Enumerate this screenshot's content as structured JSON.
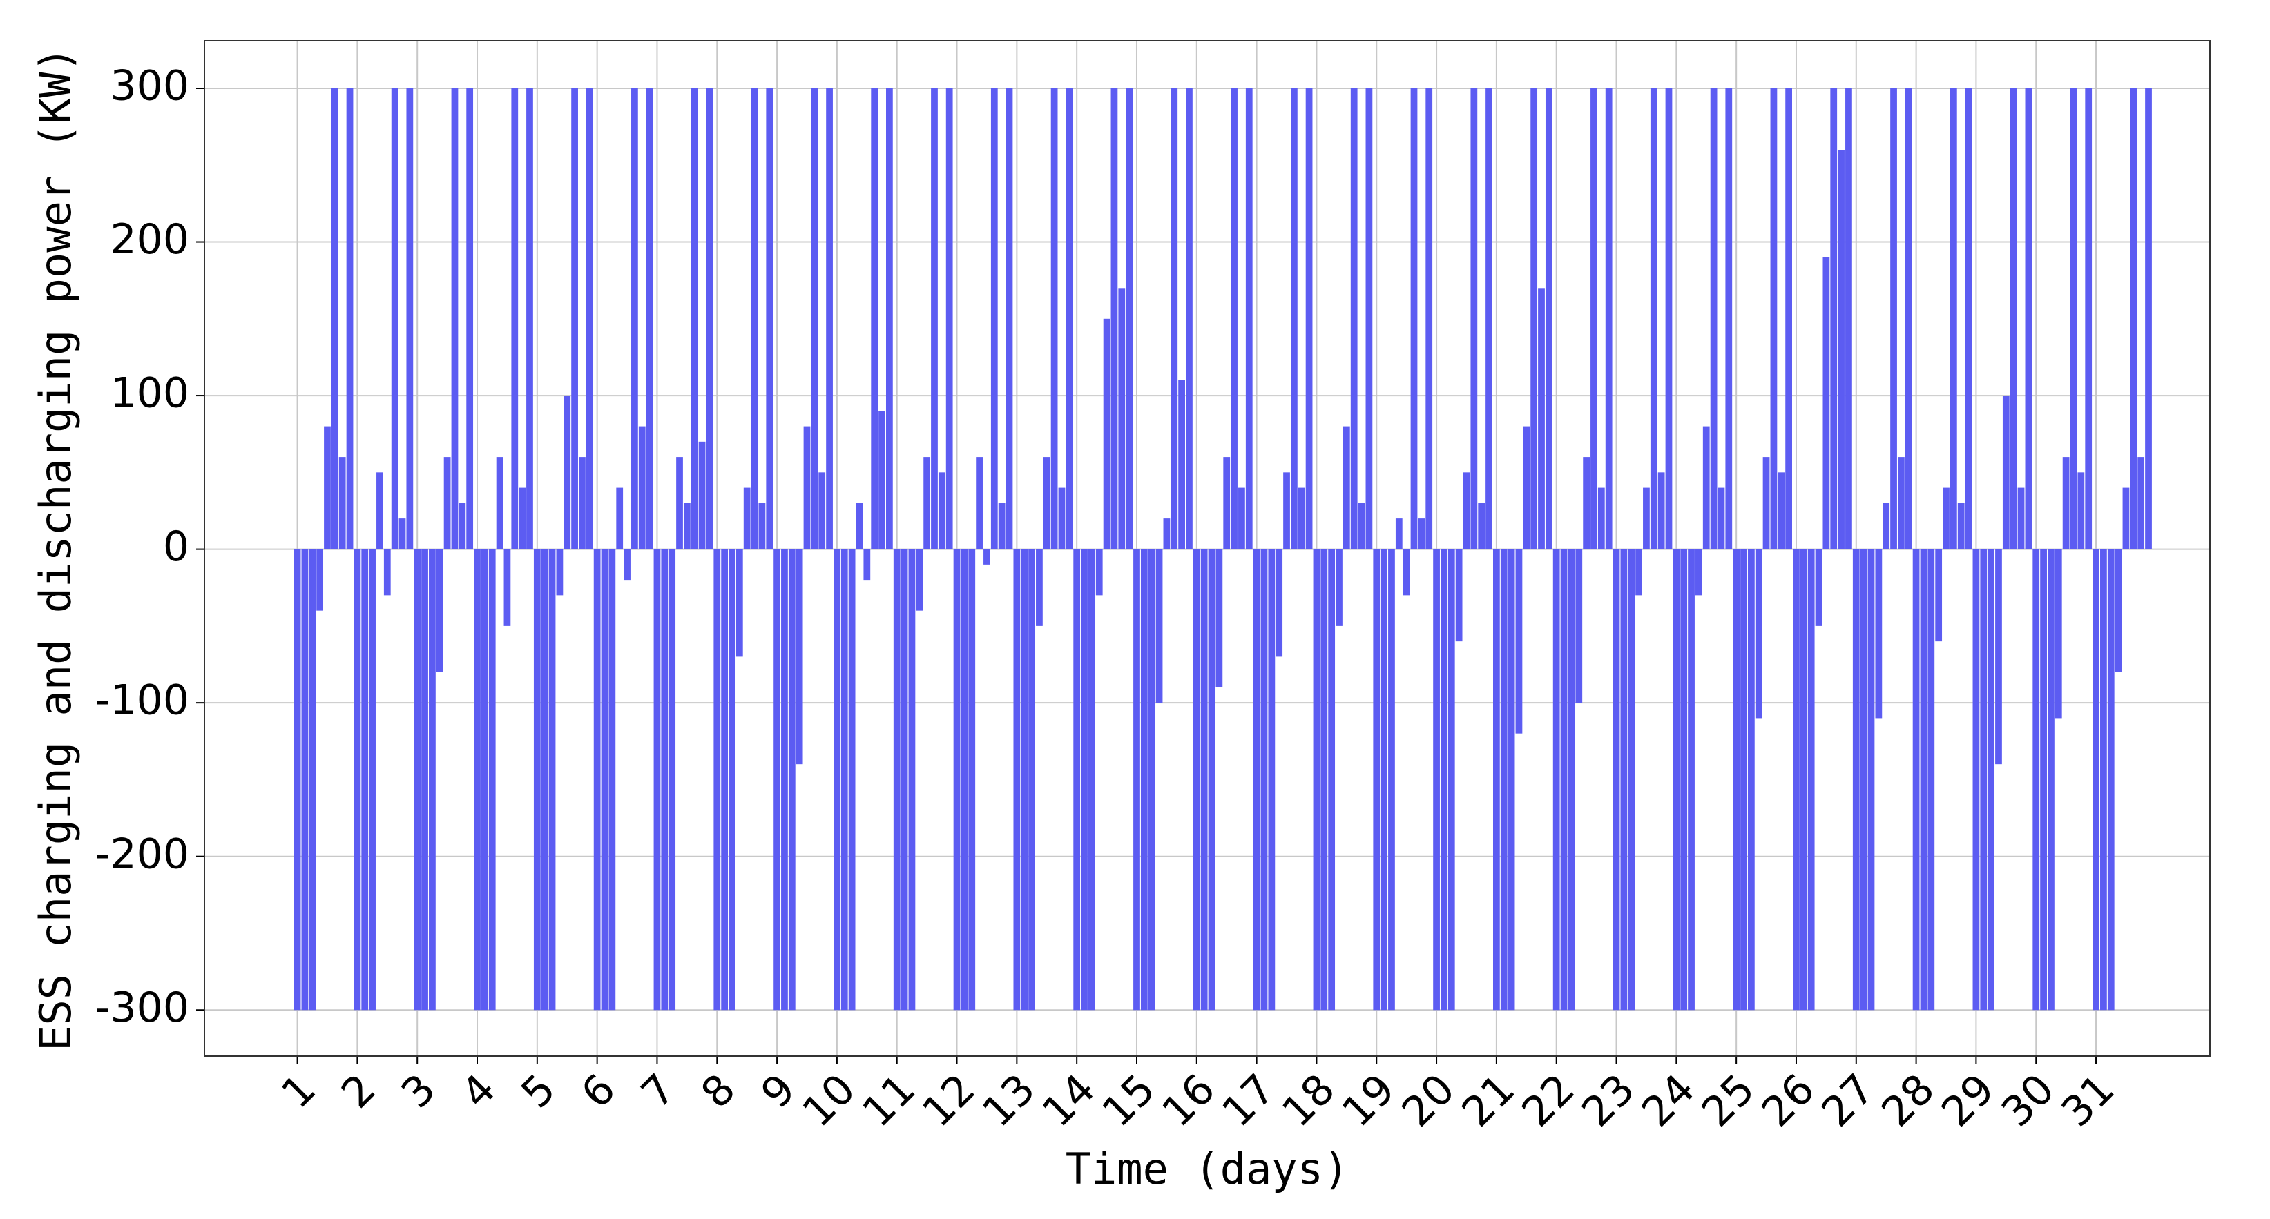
{
  "chart_data": {
    "type": "bar",
    "xlabel": "Time (days)",
    "ylabel": "ESS charging and discharging power (KW)",
    "color": "#5c5cf2",
    "grid": true,
    "xlim": [
      -0.55,
      32.9
    ],
    "ylim": [
      -330,
      331
    ],
    "xticks": [
      1,
      2,
      3,
      4,
      5,
      6,
      7,
      8,
      9,
      10,
      11,
      12,
      13,
      14,
      15,
      16,
      17,
      18,
      19,
      20,
      21,
      22,
      23,
      24,
      25,
      26,
      27,
      28,
      29,
      30,
      31
    ],
    "yticks": [
      -300,
      -200,
      -100,
      0,
      100,
      200,
      300
    ],
    "x": [
      1,
      1.125,
      1.25,
      1.375,
      1.5,
      1.625,
      1.75,
      1.875,
      2,
      2.125,
      2.25,
      2.375,
      2.5,
      2.625,
      2.75,
      2.875,
      3,
      3.125,
      3.25,
      3.375,
      3.5,
      3.625,
      3.75,
      3.875,
      4,
      4.125,
      4.25,
      4.375,
      4.5,
      4.625,
      4.75,
      4.875,
      5,
      5.125,
      5.25,
      5.375,
      5.5,
      5.625,
      5.75,
      5.875,
      6,
      6.125,
      6.25,
      6.375,
      6.5,
      6.625,
      6.75,
      6.875,
      7,
      7.125,
      7.25,
      7.375,
      7.5,
      7.625,
      7.75,
      7.875,
      8,
      8.125,
      8.25,
      8.375,
      8.5,
      8.625,
      8.75,
      8.875,
      9,
      9.125,
      9.25,
      9.375,
      9.5,
      9.625,
      9.75,
      9.875,
      10,
      10.125,
      10.25,
      10.375,
      10.5,
      10.625,
      10.75,
      10.875,
      11,
      11.125,
      11.25,
      11.375,
      11.5,
      11.625,
      11.75,
      11.875,
      12,
      12.125,
      12.25,
      12.375,
      12.5,
      12.625,
      12.75,
      12.875,
      13,
      13.125,
      13.25,
      13.375,
      13.5,
      13.625,
      13.75,
      13.875,
      14,
      14.125,
      14.25,
      14.375,
      14.5,
      14.625,
      14.75,
      14.875,
      15,
      15.125,
      15.25,
      15.375,
      15.5,
      15.625,
      15.75,
      15.875,
      16,
      16.125,
      16.25,
      16.375,
      16.5,
      16.625,
      16.75,
      16.875,
      17,
      17.125,
      17.25,
      17.375,
      17.5,
      17.625,
      17.75,
      17.875,
      18,
      18.125,
      18.25,
      18.375,
      18.5,
      18.625,
      18.75,
      18.875,
      19,
      19.125,
      19.25,
      19.375,
      19.5,
      19.625,
      19.75,
      19.875,
      20,
      20.125,
      20.25,
      20.375,
      20.5,
      20.625,
      20.75,
      20.875,
      21,
      21.125,
      21.25,
      21.375,
      21.5,
      21.625,
      21.75,
      21.875,
      22,
      22.125,
      22.25,
      22.375,
      22.5,
      22.625,
      22.75,
      22.875,
      23,
      23.125,
      23.25,
      23.375,
      23.5,
      23.625,
      23.75,
      23.875,
      24,
      24.125,
      24.25,
      24.375,
      24.5,
      24.625,
      24.75,
      24.875,
      25,
      25.125,
      25.25,
      25.375,
      25.5,
      25.625,
      25.75,
      25.875,
      26,
      26.125,
      26.25,
      26.375,
      26.5,
      26.625,
      26.75,
      26.875,
      27,
      27.125,
      27.25,
      27.375,
      27.5,
      27.625,
      27.75,
      27.875,
      28,
      28.125,
      28.25,
      28.375,
      28.5,
      28.625,
      28.75,
      28.875,
      29,
      29.125,
      29.25,
      29.375,
      29.5,
      29.625,
      29.75,
      29.875,
      30,
      30.125,
      30.25,
      30.375,
      30.5,
      30.625,
      30.75,
      30.875,
      31,
      31.125,
      31.25,
      31.375,
      31.5,
      31.625,
      31.75,
      31.875
    ],
    "values": [
      -300,
      -300,
      -300,
      -40,
      80,
      300,
      60,
      300,
      -300,
      -300,
      -300,
      50,
      -30,
      300,
      20,
      300,
      -300,
      -300,
      -300,
      -80,
      60,
      300,
      30,
      300,
      -300,
      -300,
      -300,
      60,
      -50,
      300,
      40,
      300,
      -300,
      -300,
      -300,
      -30,
      100,
      300,
      60,
      300,
      -300,
      -300,
      -300,
      40,
      -20,
      300,
      80,
      300,
      -300,
      -300,
      -300,
      60,
      30,
      300,
      70,
      300,
      -300,
      -300,
      -300,
      -70,
      40,
      300,
      30,
      300,
      -300,
      -300,
      -300,
      -140,
      80,
      300,
      50,
      300,
      -300,
      -300,
      -300,
      30,
      -20,
      300,
      90,
      300,
      -300,
      -300,
      -300,
      -40,
      60,
      300,
      50,
      300,
      -300,
      -300,
      -300,
      60,
      -10,
      300,
      30,
      300,
      -300,
      -300,
      -300,
      -50,
      60,
      300,
      40,
      300,
      -300,
      -300,
      -300,
      -30,
      150,
      300,
      170,
      300,
      -300,
      -300,
      -300,
      -100,
      20,
      300,
      110,
      300,
      -300,
      -300,
      -300,
      -90,
      60,
      300,
      40,
      300,
      -300,
      -300,
      -300,
      -70,
      50,
      300,
      40,
      300,
      -300,
      -300,
      -300,
      -50,
      80,
      300,
      30,
      300,
      -300,
      -300,
      -300,
      20,
      -30,
      300,
      20,
      300,
      -300,
      -300,
      -300,
      -60,
      50,
      300,
      30,
      300,
      -300,
      -300,
      -300,
      -120,
      80,
      300,
      170,
      300,
      -300,
      -300,
      -300,
      -100,
      60,
      300,
      40,
      300,
      -300,
      -300,
      -300,
      -30,
      40,
      300,
      50,
      300,
      -300,
      -300,
      -300,
      -30,
      80,
      300,
      40,
      300,
      -300,
      -300,
      -300,
      -110,
      60,
      300,
      50,
      300,
      -300,
      -300,
      -300,
      -50,
      190,
      300,
      260,
      300,
      -300,
      -300,
      -300,
      -110,
      30,
      300,
      60,
      300,
      -300,
      -300,
      -300,
      -60,
      40,
      300,
      30,
      300,
      -300,
      -300,
      -300,
      -140,
      100,
      300,
      40,
      300,
      -300,
      -300,
      -300,
      -110,
      60,
      300,
      50,
      300,
      -300,
      -300,
      -300,
      -80,
      40,
      300,
      60,
      300
    ]
  }
}
